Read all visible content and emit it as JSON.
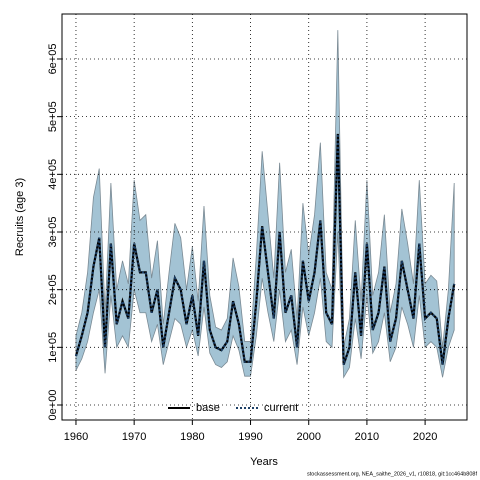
{
  "chart_data": {
    "type": "line",
    "x_label": "Years",
    "y_label": "Recruits (age 3)",
    "footnote": "stockassessment.org, NEA_saithe_2026_v1, r10818, git:1cc464b808f",
    "x": [
      1960,
      1961,
      1962,
      1963,
      1964,
      1965,
      1966,
      1967,
      1968,
      1969,
      1970,
      1971,
      1972,
      1973,
      1974,
      1975,
      1976,
      1977,
      1978,
      1979,
      1980,
      1981,
      1982,
      1983,
      1984,
      1985,
      1986,
      1987,
      1988,
      1989,
      1990,
      1991,
      1992,
      1993,
      1994,
      1995,
      1996,
      1997,
      1998,
      1999,
      2000,
      2001,
      2002,
      2003,
      2004,
      2005,
      2006,
      2007,
      2008,
      2009,
      2010,
      2011,
      2012,
      2013,
      2014,
      2015,
      2016,
      2017,
      2018,
      2019,
      2020,
      2021,
      2022,
      2023,
      2024,
      2025
    ],
    "series": [
      {
        "name": "base",
        "color": "#000000",
        "values": [
          85000,
          120000,
          160000,
          240000,
          290000,
          100000,
          280000,
          140000,
          180000,
          150000,
          280000,
          230000,
          230000,
          160000,
          200000,
          100000,
          160000,
          220000,
          200000,
          140000,
          190000,
          120000,
          250000,
          130000,
          100000,
          95000,
          110000,
          180000,
          140000,
          75000,
          75000,
          180000,
          310000,
          230000,
          150000,
          300000,
          160000,
          190000,
          100000,
          250000,
          180000,
          230000,
          320000,
          160000,
          140000,
          470000,
          70000,
          100000,
          230000,
          120000,
          280000,
          130000,
          160000,
          240000,
          110000,
          150000,
          250000,
          200000,
          150000,
          280000,
          150000,
          160000,
          150000,
          70000,
          150000,
          210000
        ]
      },
      {
        "name": "current",
        "color": "#1c3f66",
        "values": [
          85000,
          120000,
          160000,
          240000,
          290000,
          100000,
          280000,
          140000,
          180000,
          150000,
          280000,
          230000,
          230000,
          160000,
          200000,
          100000,
          160000,
          220000,
          200000,
          140000,
          190000,
          120000,
          250000,
          130000,
          100000,
          95000,
          110000,
          180000,
          140000,
          75000,
          75000,
          180000,
          310000,
          230000,
          150000,
          300000,
          160000,
          190000,
          100000,
          250000,
          180000,
          230000,
          320000,
          160000,
          140000,
          470000,
          70000,
          100000,
          230000,
          120000,
          280000,
          130000,
          160000,
          240000,
          110000,
          150000,
          250000,
          200000,
          150000,
          280000,
          150000,
          160000,
          150000,
          70000,
          150000,
          210000
        ]
      }
    ],
    "band": {
      "color": "#a3c3d4",
      "lower": [
        60000,
        80000,
        110000,
        160000,
        200000,
        55000,
        190000,
        100000,
        120000,
        100000,
        200000,
        160000,
        160000,
        110000,
        140000,
        70000,
        110000,
        150000,
        140000,
        100000,
        130000,
        85000,
        170000,
        90000,
        70000,
        65000,
        75000,
        120000,
        95000,
        50000,
        50000,
        120000,
        220000,
        160000,
        110000,
        200000,
        110000,
        130000,
        70000,
        170000,
        120000,
        160000,
        220000,
        110000,
        100000,
        300000,
        48000,
        65000,
        150000,
        80000,
        190000,
        90000,
        110000,
        160000,
        75000,
        100000,
        170000,
        140000,
        100000,
        190000,
        100000,
        110000,
        100000,
        48000,
        100000,
        130000
      ],
      "upper": [
        120000,
        160000,
        230000,
        360000,
        410000,
        160000,
        385000,
        200000,
        250000,
        210000,
        390000,
        320000,
        330000,
        220000,
        285000,
        140000,
        230000,
        315000,
        290000,
        200000,
        275000,
        180000,
        345000,
        190000,
        135000,
        130000,
        150000,
        255000,
        205000,
        110000,
        110000,
        260000,
        440000,
        330000,
        220000,
        420000,
        230000,
        270000,
        150000,
        350000,
        260000,
        330000,
        455000,
        230000,
        200000,
        650000,
        100000,
        150000,
        320000,
        180000,
        390000,
        190000,
        230000,
        330000,
        160000,
        210000,
        340000,
        280000,
        210000,
        390000,
        210000,
        225000,
        215000,
        100000,
        200000,
        385000
      ]
    },
    "xlim": [
      1957.6,
      2027.2
    ],
    "ylim": [
      -26000,
      678000
    ],
    "xticks": [
      1960,
      1970,
      1980,
      1990,
      2000,
      2010,
      2020
    ],
    "yticks": [
      {
        "value": 0,
        "label": "0e+00"
      },
      {
        "value": 100000,
        "label": "1e+05"
      },
      {
        "value": 200000,
        "label": "2e+05"
      },
      {
        "value": 300000,
        "label": "3e+05"
      },
      {
        "value": 400000,
        "label": "4e+05"
      },
      {
        "value": 500000,
        "label": "5e+05"
      },
      {
        "value": 600000,
        "label": "6e+05"
      }
    ],
    "grid": true,
    "legend": "bottom"
  }
}
